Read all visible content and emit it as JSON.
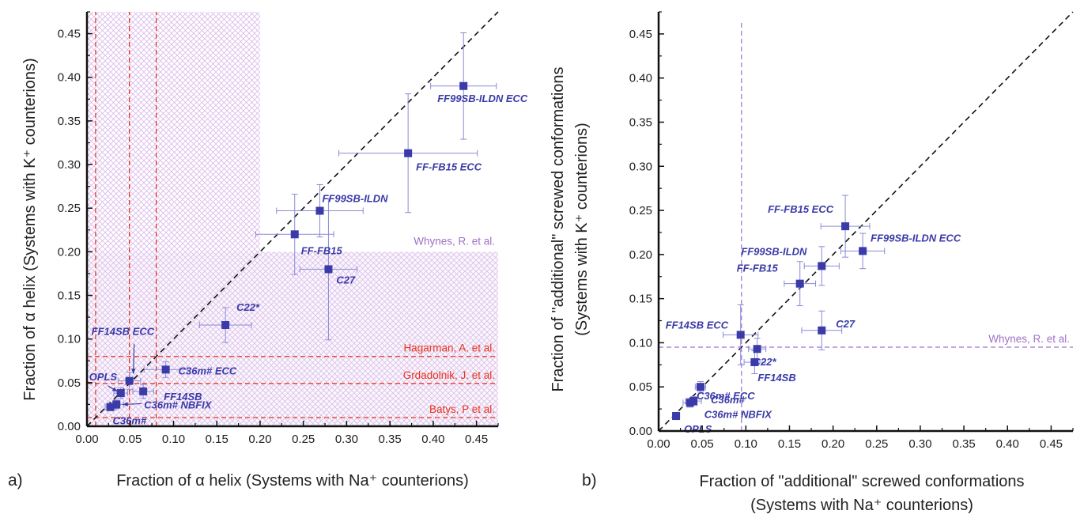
{
  "colors": {
    "point": "#3a3aa8",
    "errorbar": "#8a8ad8",
    "ref_red": "#e8321e",
    "ref_purple": "#a070c8",
    "hatch": "#d9b8e8",
    "diagonal": "#111111",
    "axis": "#111111"
  },
  "chart_data": [
    {
      "type": "scatter",
      "panel_label": "a)",
      "xlabel": "Fraction of α helix (Systems with Na⁺ counterions)",
      "ylabel": "Fraction of α helix (Systems with K⁺ counterions)",
      "xlim": [
        0,
        0.475
      ],
      "ylim": [
        0,
        0.475
      ],
      "xticks": [
        "0.00",
        "0.05",
        "0.10",
        "0.15",
        "0.20",
        "0.25",
        "0.30",
        "0.35",
        "0.40",
        "0.45"
      ],
      "yticks": [
        "0.00",
        "0.05",
        "0.10",
        "0.15",
        "0.20",
        "0.25",
        "0.30",
        "0.35",
        "0.40",
        "0.45"
      ],
      "diagonal": true,
      "points": [
        {
          "label": "FF99SB-ILDN ECC",
          "x": 0.435,
          "y": 0.39,
          "xerr": 0.038,
          "yerr": 0.061
        },
        {
          "label": "FF-FB15 ECC",
          "x": 0.371,
          "y": 0.313,
          "xerr": 0.08,
          "yerr": 0.068
        },
        {
          "label": "FF99SB-ILDN",
          "x": 0.269,
          "y": 0.247,
          "xerr": 0.05,
          "yerr": 0.03
        },
        {
          "label": "FF-FB15",
          "x": 0.24,
          "y": 0.22,
          "xerr": 0.045,
          "yerr": 0.046
        },
        {
          "label": "C27",
          "x": 0.279,
          "y": 0.18,
          "xerr": 0.033,
          "yerr": 0.081
        },
        {
          "label": "C22*",
          "x": 0.16,
          "y": 0.116,
          "xerr": 0.03,
          "yerr": 0.02
        },
        {
          "label": "C36m# ECC",
          "x": 0.091,
          "y": 0.065,
          "xerr": 0.025,
          "yerr": 0.009
        },
        {
          "label": "FF14SB ECC",
          "x": 0.049,
          "y": 0.052,
          "xerr": 0.013,
          "yerr": 0.01
        },
        {
          "label": "FF14SB",
          "x": 0.065,
          "y": 0.04,
          "xerr": 0.012,
          "yerr": 0.008
        },
        {
          "label": "OPLS",
          "x": 0.039,
          "y": 0.038,
          "xerr": 0.008,
          "yerr": 0.006
        },
        {
          "label": "C36m# NBFIX",
          "x": 0.034,
          "y": 0.025,
          "xerr": 0.008,
          "yerr": 0.005
        },
        {
          "label": "C36m#",
          "x": 0.027,
          "y": 0.022,
          "xerr": 0.006,
          "yerr": 0.004
        }
      ],
      "reference_lines": [
        {
          "label": "Hagarman, A. et al.",
          "value": 0.08
        },
        {
          "label": "Grdadolnik, J. et al.",
          "value": 0.049
        },
        {
          "label": "Batys, P et al.",
          "value": 0.01
        }
      ],
      "shaded_reference": {
        "label": "Whynes, R. et al.",
        "band_upper": 0.2
      },
      "annotations": [
        {
          "text": "FF99SB-ILDN ECC"
        },
        {
          "text": "FF-FB15 ECC"
        }
      ]
    },
    {
      "type": "scatter",
      "panel_label": "b)",
      "xlabel": "Fraction of \"additional\" screwed conformations",
      "xlabel2": "(Systems with Na⁺ counterions)",
      "ylabel": "Fraction of \"additional\" screwed conformations",
      "ylabel2": "(Systems with K⁺ counterions)",
      "xlim": [
        0,
        0.475
      ],
      "ylim": [
        0,
        0.475
      ],
      "xticks": [
        "0.00",
        "0.05",
        "0.10",
        "0.15",
        "0.20",
        "0.25",
        "0.30",
        "0.35",
        "0.40",
        "0.45"
      ],
      "yticks": [
        "0.00",
        "0.05",
        "0.10",
        "0.15",
        "0.20",
        "0.25",
        "0.30",
        "0.35",
        "0.40",
        "0.45"
      ],
      "diagonal": true,
      "points": [
        {
          "label": "FF-FB15 ECC",
          "x": 0.214,
          "y": 0.232,
          "xerr": 0.028,
          "yerr": 0.035
        },
        {
          "label": "FF99SB-ILDN ECC",
          "x": 0.234,
          "y": 0.204,
          "xerr": 0.025,
          "yerr": 0.02
        },
        {
          "label": "FF99SB-ILDN",
          "x": 0.187,
          "y": 0.187,
          "xerr": 0.02,
          "yerr": 0.022
        },
        {
          "label": "FF-FB15",
          "x": 0.162,
          "y": 0.167,
          "xerr": 0.018,
          "yerr": 0.025
        },
        {
          "label": "C27",
          "x": 0.187,
          "y": 0.114,
          "xerr": 0.023,
          "yerr": 0.022
        },
        {
          "label": "FF14SB ECC",
          "x": 0.094,
          "y": 0.109,
          "xerr": 0.02,
          "yerr": 0.034
        },
        {
          "label": "C22*",
          "x": 0.113,
          "y": 0.093,
          "xerr": 0.01,
          "yerr": 0.012
        },
        {
          "label": "FF14SB",
          "x": 0.11,
          "y": 0.078,
          "xerr": 0.012,
          "yerr": 0.013
        },
        {
          "label": "C36m# ECC",
          "x": 0.048,
          "y": 0.05,
          "xerr": 0.006,
          "yerr": 0.006
        },
        {
          "label": "C36m#",
          "x": 0.04,
          "y": 0.034,
          "xerr": 0.009,
          "yerr": 0.005
        },
        {
          "label": "C36m# NBFIX",
          "x": 0.036,
          "y": 0.032,
          "xerr": 0.008,
          "yerr": 0.005
        },
        {
          "label": "OPLS",
          "x": 0.02,
          "y": 0.017,
          "xerr": 0.004,
          "yerr": 0.004
        }
      ],
      "reference_lines": [
        {
          "label": "Whynes, R. et al.",
          "orientation": "both",
          "value": 0.095
        }
      ]
    }
  ]
}
